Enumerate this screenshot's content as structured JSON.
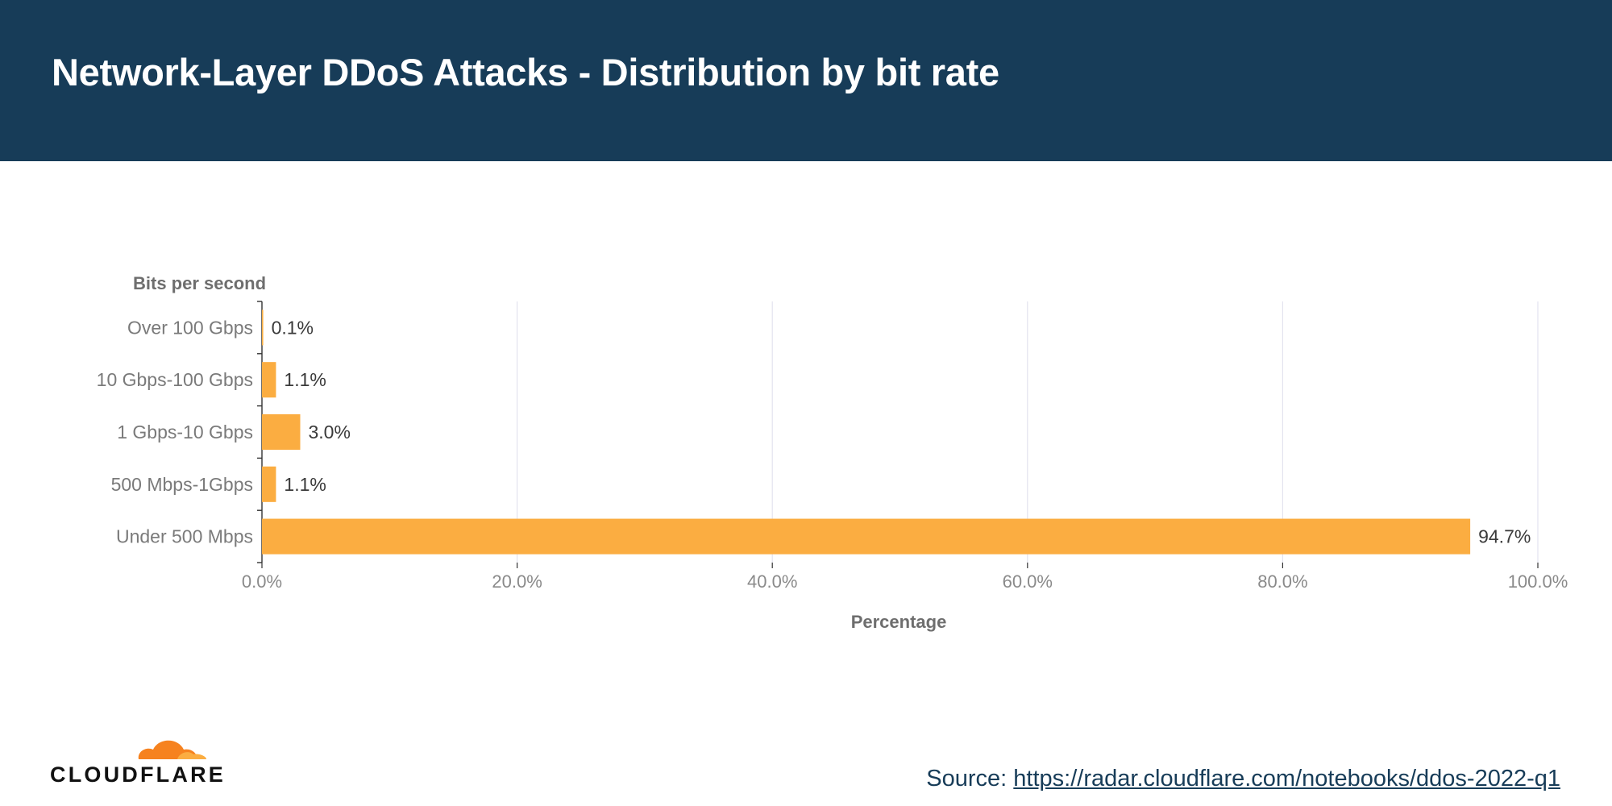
{
  "header": {
    "title": "Network-Layer DDoS Attacks - Distribution by bit rate"
  },
  "brand": {
    "name": "CLOUDFLARE",
    "logo_icon": "cloud-icon",
    "logo_colors": [
      "#f6821f",
      "#fbad41"
    ]
  },
  "footer": {
    "source_label": "Source:",
    "source_link": "https://radar.cloudflare.com/notebooks/ddos-2022-q1"
  },
  "colors": {
    "header_bg": "#173c58",
    "bar": "#fbad41"
  },
  "chart_data": {
    "type": "bar",
    "orientation": "horizontal",
    "ylabel": "Bits per second",
    "xlabel": "Percentage",
    "categories": [
      "Over 100 Gbps",
      "10 Gbps-100 Gbps",
      "1 Gbps-10 Gbps",
      "500 Mbps-1Gbps",
      "Under 500 Mbps"
    ],
    "values": [
      0.1,
      1.1,
      3.0,
      1.1,
      94.7
    ],
    "value_labels": [
      "0.1%",
      "1.1%",
      "3.0%",
      "1.1%",
      "94.7%"
    ],
    "xlim": [
      0,
      100
    ],
    "xticks": [
      0,
      20,
      40,
      60,
      80,
      100
    ],
    "xtick_labels": [
      "0.0%",
      "20.0%",
      "40.0%",
      "60.0%",
      "80.0%",
      "100.0%"
    ],
    "grid": true
  }
}
